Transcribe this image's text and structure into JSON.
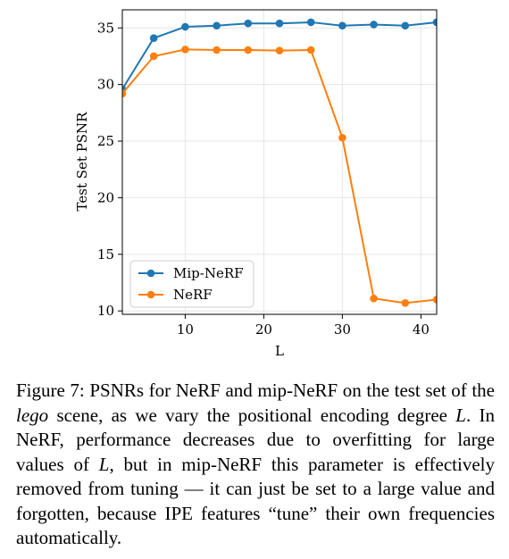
{
  "chart_data": {
    "type": "line",
    "title": "",
    "xlabel": "L",
    "ylabel": "Test Set PSNR",
    "xlim": [
      2,
      42
    ],
    "ylim": [
      9.7,
      36.6
    ],
    "xticks": [
      10,
      20,
      30,
      40
    ],
    "yticks": [
      10,
      15,
      20,
      25,
      30,
      35
    ],
    "grid": true,
    "legend_position": "lower-left",
    "series": [
      {
        "name": "Mip-NeRF",
        "color": "#1f77b4",
        "x": [
          2,
          6,
          10,
          14,
          18,
          22,
          26,
          30,
          34,
          38,
          42
        ],
        "y": [
          29.6,
          34.1,
          35.1,
          35.2,
          35.4,
          35.4,
          35.5,
          35.2,
          35.3,
          35.2,
          35.5
        ]
      },
      {
        "name": "NeRF",
        "color": "#ff7f0e",
        "x": [
          2,
          6,
          10,
          14,
          18,
          22,
          26,
          30,
          34,
          38,
          42
        ],
        "y": [
          29.2,
          32.5,
          33.1,
          33.05,
          33.05,
          33.0,
          33.05,
          25.3,
          11.1,
          10.7,
          11.0
        ]
      }
    ]
  },
  "caption": {
    "figure_label": "Figure 7:",
    "text_part1": "PSNRs for NeRF and mip-NeRF on the test set of the",
    "italic_word": "lego",
    "text_part2": "scene, as we vary the positional encoding degree",
    "var1": "L",
    "text_part3": ". In NeRF, performance decreases due to overfitting for large values of",
    "var2": "L",
    "text_part4": ", but in mip-NeRF this parameter is effectively removed from tuning — it can just be set to a large value and forgotten, because IPE features “tune” their own frequencies automatically."
  }
}
